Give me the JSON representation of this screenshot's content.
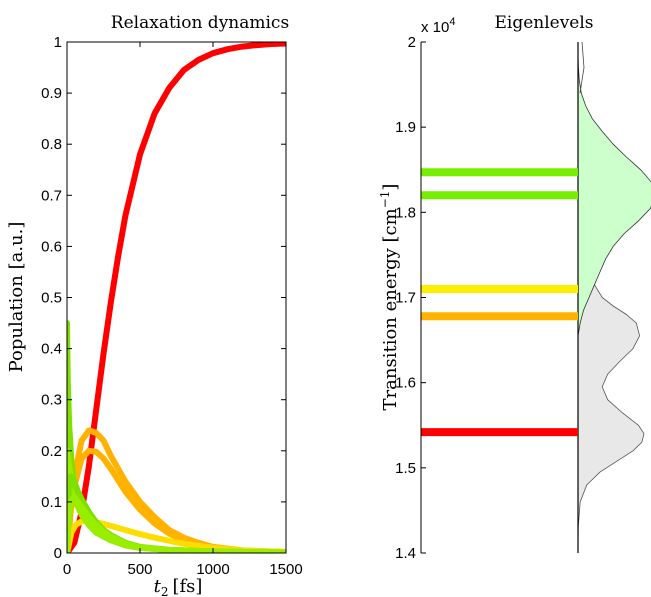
{
  "chart_data": [
    {
      "type": "line",
      "title": "Relaxation dynamics",
      "xlabel": "t",
      "xlabel_sub": "2",
      "xlabel_unit": "[fs]",
      "ylabel": "Population [a.u.]",
      "xlim": [
        0,
        1500
      ],
      "ylim": [
        0,
        1
      ],
      "xticks": [
        "0",
        "500",
        "1000",
        "1500"
      ],
      "yticks": [
        "0",
        "0.1",
        "0.2",
        "0.3",
        "0.4",
        "0.5",
        "0.6",
        "0.7",
        "0.8",
        "0.9",
        "1"
      ],
      "grid": false,
      "legend": "none",
      "series": [
        {
          "color": "#ff0000",
          "x": [
            0,
            50,
            100,
            150,
            200,
            250,
            300,
            350,
            400,
            450,
            500,
            600,
            700,
            800,
            900,
            1000,
            1100,
            1200,
            1300,
            1400,
            1500
          ],
          "values": [
            0,
            0.02,
            0.08,
            0.17,
            0.28,
            0.39,
            0.49,
            0.58,
            0.66,
            0.72,
            0.78,
            0.86,
            0.91,
            0.945,
            0.965,
            0.978,
            0.986,
            0.991,
            0.994,
            0.996,
            0.997
          ]
        },
        {
          "color": "#ffb300",
          "x": [
            0,
            25,
            50,
            100,
            150,
            200,
            250,
            300,
            400,
            500,
            600,
            700,
            800,
            900,
            1000,
            1200,
            1500
          ],
          "values": [
            0,
            0.09,
            0.15,
            0.22,
            0.24,
            0.235,
            0.22,
            0.19,
            0.14,
            0.1,
            0.07,
            0.045,
            0.03,
            0.02,
            0.012,
            0.005,
            0.002
          ]
        },
        {
          "color": "#ffb300",
          "x": [
            0,
            25,
            50,
            100,
            150,
            200,
            250,
            300,
            400,
            500,
            600,
            700,
            800,
            900,
            1000,
            1200,
            1500
          ],
          "values": [
            0,
            0.08,
            0.13,
            0.185,
            0.2,
            0.198,
            0.185,
            0.165,
            0.12,
            0.085,
            0.058,
            0.038,
            0.025,
            0.016,
            0.01,
            0.004,
            0.002
          ]
        },
        {
          "color": "#ffdd00",
          "x": [
            0,
            30,
            60,
            100,
            150,
            200,
            250,
            300,
            400,
            500,
            600,
            800,
            1000,
            1200,
            1500
          ],
          "values": [
            0,
            0.04,
            0.055,
            0.062,
            0.063,
            0.06,
            0.057,
            0.053,
            0.045,
            0.037,
            0.03,
            0.018,
            0.01,
            0.005,
            0.002
          ]
        },
        {
          "color": "#7fe000",
          "x": [
            0,
            5,
            15,
            30,
            50,
            75,
            100,
            150,
            200,
            300,
            400,
            500,
            700,
            1000,
            1500
          ],
          "values": [
            0.45,
            0.34,
            0.25,
            0.18,
            0.13,
            0.1,
            0.08,
            0.055,
            0.04,
            0.025,
            0.015,
            0.01,
            0.006,
            0.003,
            0.001
          ]
        },
        {
          "color": "#99ee00",
          "x": [
            0,
            5,
            15,
            30,
            50,
            75,
            100,
            150,
            200,
            300,
            400,
            500,
            700,
            1000,
            1500
          ],
          "values": [
            0.2,
            0.19,
            0.17,
            0.14,
            0.11,
            0.09,
            0.075,
            0.055,
            0.04,
            0.025,
            0.015,
            0.01,
            0.006,
            0.003,
            0.001
          ]
        },
        {
          "color": "#7fe000",
          "x": [
            0,
            10,
            25,
            50,
            75,
            100,
            150,
            200,
            250,
            300,
            400,
            500,
            700,
            1000,
            1500
          ],
          "values": [
            0,
            0.1,
            0.15,
            0.14,
            0.12,
            0.105,
            0.08,
            0.06,
            0.045,
            0.035,
            0.02,
            0.012,
            0.006,
            0.003,
            0.001
          ]
        },
        {
          "color": "#99ee00",
          "x": [
            0,
            10,
            25,
            50,
            75,
            100,
            150,
            200,
            250,
            300,
            400,
            500,
            700,
            1000,
            1500
          ],
          "values": [
            0,
            0.06,
            0.1,
            0.11,
            0.1,
            0.09,
            0.07,
            0.055,
            0.042,
            0.032,
            0.018,
            0.011,
            0.006,
            0.003,
            0.001
          ]
        }
      ]
    },
    {
      "type": "line",
      "title": "Eigenlevels",
      "ylabel": "Transition energy [cm",
      "ylabel_sup": "−1",
      "ylabel_end": "]",
      "multiplier": "x 10",
      "multiplier_exp": "4",
      "ylim": [
        14000,
        20000
      ],
      "yticks": [
        "1.4",
        "1.5",
        "1.6",
        "1.7",
        "1.8",
        "1.9",
        "2"
      ],
      "grid": false,
      "legend": "none",
      "levels": [
        {
          "y": 18470,
          "color": "#77ee00"
        },
        {
          "y": 18200,
          "color": "#77ee00"
        },
        {
          "y": 17100,
          "color": "#ffee00"
        },
        {
          "y": 16780,
          "color": "#ffb300"
        },
        {
          "y": 15420,
          "color": "#ff0000"
        }
      ],
      "spectrum_total": {
        "fill": "#e8e8e8",
        "energy": [
          14000,
          14300,
          14600,
          14800,
          14950,
          15100,
          15200,
          15300,
          15400,
          15500,
          15650,
          15800,
          15950,
          16100,
          16250,
          16400,
          16550,
          16700,
          16800,
          16900,
          17000,
          17150,
          17300,
          17450,
          17600,
          17750,
          17900,
          18050,
          18200,
          18350,
          18500,
          18650,
          18800,
          19000,
          19200,
          19400,
          19700,
          20000
        ],
        "amplitude": [
          0.0,
          0.002,
          0.02,
          0.08,
          0.2,
          0.38,
          0.5,
          0.58,
          0.6,
          0.55,
          0.4,
          0.27,
          0.22,
          0.27,
          0.38,
          0.5,
          0.56,
          0.53,
          0.44,
          0.32,
          0.22,
          0.15,
          0.14,
          0.16,
          0.2,
          0.25,
          0.3,
          0.32,
          0.3,
          0.25,
          0.18,
          0.12,
          0.07,
          0.03,
          0.012,
          0.005,
          0.001,
          0.0
        ]
      },
      "spectrum_band": {
        "fill": "#ccffcc",
        "energy": [
          16550,
          16700,
          16850,
          17000,
          17150,
          17300,
          17450,
          17600,
          17750,
          17900,
          18050,
          18200,
          18350,
          18500,
          18650,
          18800,
          18950,
          19100,
          19250,
          19400,
          19550,
          19700,
          19850
        ],
        "amplitude": [
          0.0,
          0.02,
          0.05,
          0.1,
          0.15,
          0.2,
          0.25,
          0.32,
          0.42,
          0.55,
          0.66,
          0.7,
          0.67,
          0.57,
          0.44,
          0.32,
          0.22,
          0.13,
          0.07,
          0.03,
          0.012,
          0.004,
          0.0
        ]
      }
    }
  ]
}
